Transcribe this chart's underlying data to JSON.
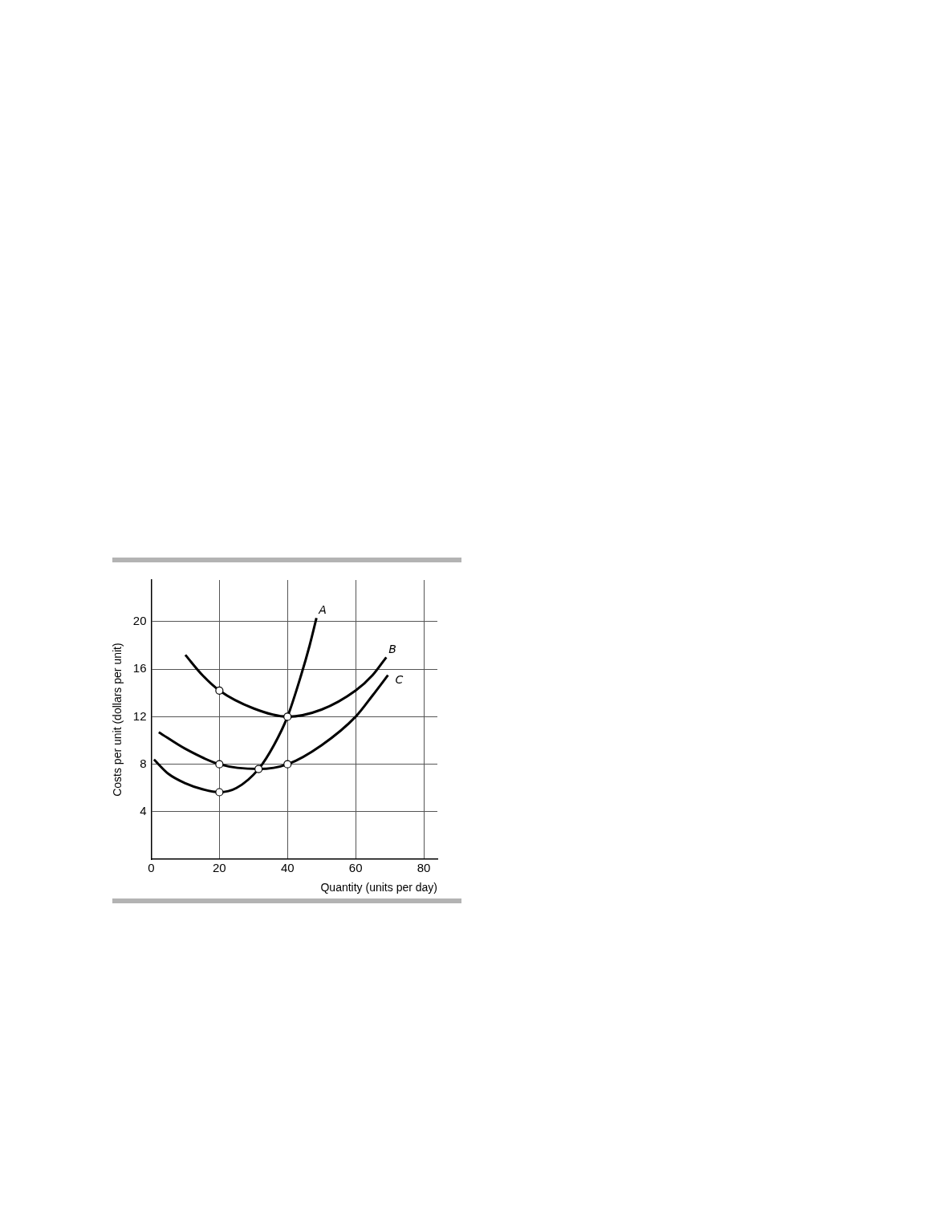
{
  "chart_data": {
    "type": "line",
    "xlabel": "Quantity (units per day)",
    "ylabel": "Costs per unit (dollars per unit)",
    "xlim": [
      0,
      84
    ],
    "xticks": [
      0,
      20,
      40,
      60,
      80
    ],
    "ylim": [
      0,
      23.5
    ],
    "yticks": [
      4,
      8,
      12,
      16,
      20
    ],
    "grid": true,
    "legend": false,
    "marker": "none",
    "line_style": "solid",
    "series": [
      {
        "name": "A",
        "color": "#000000",
        "x": [
          0.8,
          5,
          10,
          15,
          20,
          25,
          31.5,
          36,
          40,
          44,
          46.5,
          48.5
        ],
        "values": [
          8.4,
          7.2,
          6.4,
          5.9,
          5.65,
          6.0,
          7.6,
          9.6,
          12,
          15.5,
          18,
          20.3
        ]
      },
      {
        "name": "B",
        "color": "#000000",
        "x": [
          10,
          15,
          20,
          30,
          40,
          50,
          60,
          65,
          69
        ],
        "values": [
          17.2,
          15.5,
          14.2,
          12.7,
          12.0,
          12.6,
          14.2,
          15.5,
          17.0
        ]
      },
      {
        "name": "C",
        "color": "#000000",
        "x": [
          2.2,
          10,
          20,
          31.5,
          40,
          50,
          60,
          65,
          69.5
        ],
        "values": [
          10.7,
          9.3,
          8.0,
          7.6,
          8.0,
          9.6,
          12.0,
          13.8,
          15.5
        ]
      },
      {
        "type": "scatter",
        "marker": "circle",
        "color": "#000000",
        "x": [
          20,
          40,
          20,
          31.5,
          40,
          20
        ],
        "values": [
          14.2,
          12,
          8,
          7.6,
          8,
          5.65
        ]
      }
    ]
  }
}
